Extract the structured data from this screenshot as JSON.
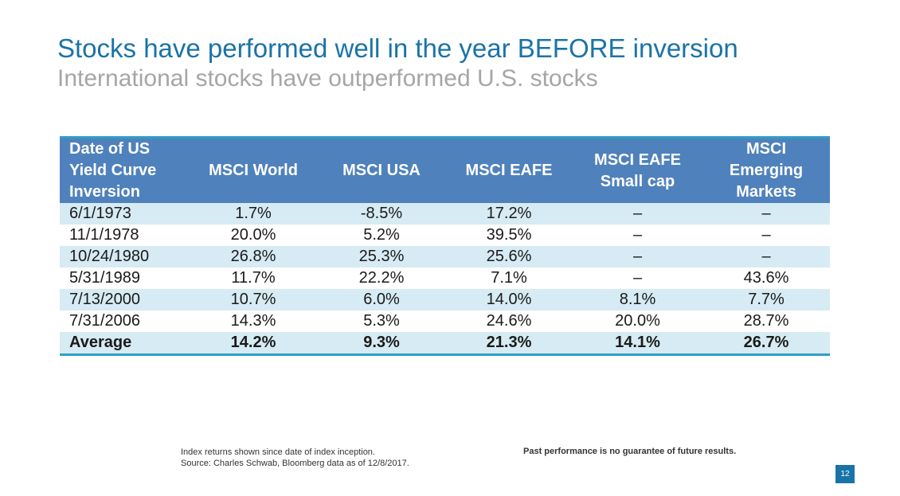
{
  "title": "Stocks have performed well in the year BEFORE inversion",
  "subtitle": "International stocks have outperformed U.S. stocks",
  "table": {
    "headers": [
      [
        "Date of US",
        "Yield Curve",
        "Inversion"
      ],
      [
        "MSCI World"
      ],
      [
        "MSCI USA"
      ],
      [
        "MSCI EAFE"
      ],
      [
        "MSCI EAFE",
        "Small cap"
      ],
      [
        "MSCI",
        "Emerging",
        "Markets"
      ]
    ],
    "rows": [
      [
        "6/1/1973",
        "1.7%",
        "-8.5%",
        "17.2%",
        "–",
        "–"
      ],
      [
        "11/1/1978",
        "20.0%",
        "5.2%",
        "39.5%",
        "–",
        "–"
      ],
      [
        "10/24/1980",
        "26.8%",
        "25.3%",
        "25.6%",
        "–",
        "–"
      ],
      [
        "5/31/1989",
        "11.7%",
        "22.2%",
        "7.1%",
        "–",
        "43.6%"
      ],
      [
        "7/13/2000",
        "10.7%",
        "6.0%",
        "14.0%",
        "8.1%",
        "7.7%"
      ],
      [
        "7/31/2006",
        "14.3%",
        "5.3%",
        "24.6%",
        "20.0%",
        "28.7%"
      ]
    ],
    "average": [
      "Average",
      "14.2%",
      "9.3%",
      "21.3%",
      "14.1%",
      "26.7%"
    ]
  },
  "footnote": {
    "line1": "Index returns shown since date of index inception.",
    "line2": "Source: Charles Schwab, Bloomberg data as of 12/8/2017."
  },
  "disclaimer": "Past performance is no guarantee of future results.",
  "page_number": "12",
  "colors": {
    "title": "#1a73a8",
    "subtitle": "#a6a6a6",
    "header_bg": "#4f81bd",
    "row_shade": "#d6ebf3",
    "rule": "#2e9fc4"
  }
}
